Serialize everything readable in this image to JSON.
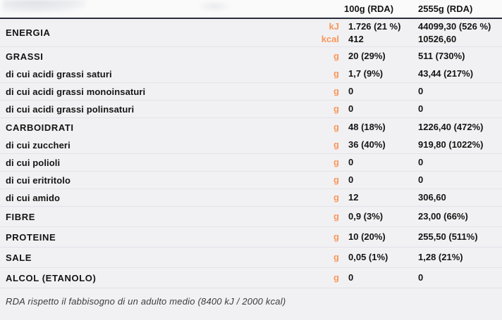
{
  "colors": {
    "accent_orange": "#f8975c",
    "header_rule": "#272d3a",
    "row_separator": "#e3e2ea",
    "background": "#f1f1f3"
  },
  "header": {
    "col_100g": "100g (RDA)",
    "col_2555g": "2555g (RDA)"
  },
  "rows": [
    {
      "label": "ENERGIA",
      "kind": "energy",
      "border": true,
      "lines": [
        {
          "unit": "kJ",
          "v100": "1.726 (21 %)",
          "v2555": "44099,30 (526 %)"
        },
        {
          "unit": "kcal",
          "v100": "412",
          "v2555": "10526,60"
        }
      ]
    },
    {
      "label": "GRASSI",
      "kind": "section",
      "border": false,
      "lines": [
        {
          "unit": "g",
          "v100": "20 (29%)",
          "v2555": "511 (730%)"
        }
      ]
    },
    {
      "label": "di cui acidi grassi saturi",
      "kind": "sub",
      "border": true,
      "lines": [
        {
          "unit": "g",
          "v100": "1,7 (9%)",
          "v2555": "43,44  (217%)"
        }
      ]
    },
    {
      "label": "di cui acidi grassi monoinsaturi",
      "kind": "sub",
      "border": true,
      "lines": [
        {
          "unit": "g",
          "v100": "0",
          "v2555": "0"
        }
      ]
    },
    {
      "label": "di cui acidi grassi polinsaturi",
      "kind": "sub",
      "border": true,
      "lines": [
        {
          "unit": "g",
          "v100": "0",
          "v2555": "0"
        }
      ]
    },
    {
      "label": "CARBOIDRATI",
      "kind": "section",
      "border": false,
      "lines": [
        {
          "unit": "g",
          "v100": "48 (18%)",
          "v2555": "1226,40 (472%)"
        }
      ]
    },
    {
      "label": "di cui zuccheri",
      "kind": "sub",
      "border": true,
      "lines": [
        {
          "unit": "g",
          "v100": "36 (40%)",
          "v2555": "919,80 (1022%)"
        }
      ]
    },
    {
      "label": "di cui polioli",
      "kind": "sub",
      "border": true,
      "lines": [
        {
          "unit": "g",
          "v100": "0",
          "v2555": "0"
        }
      ]
    },
    {
      "label": "di cui eritritolo",
      "kind": "sub",
      "border": true,
      "lines": [
        {
          "unit": "g",
          "v100": "0",
          "v2555": "0"
        }
      ]
    },
    {
      "label": "di cui amido",
      "kind": "sub",
      "border": true,
      "lines": [
        {
          "unit": "g",
          "v100": "12",
          "v2555": "306,60"
        }
      ]
    },
    {
      "label": "FIBRE",
      "kind": "main",
      "border": true,
      "lines": [
        {
          "unit": "g",
          "v100": "0,9 (3%)",
          "v2555": "23,00 (66%)"
        }
      ]
    },
    {
      "label": "PROTEINE",
      "kind": "main",
      "border": true,
      "lines": [
        {
          "unit": "g",
          "v100": "10 (20%)",
          "v2555": "255,50 (511%)"
        }
      ]
    },
    {
      "label": "SALE",
      "kind": "main",
      "border": true,
      "lines": [
        {
          "unit": "g",
          "v100": "0,05 (1%)",
          "v2555": "1,28 (21%)"
        }
      ]
    },
    {
      "label": "ALCOL (ETANOLO)",
      "kind": "main",
      "border": true,
      "lines": [
        {
          "unit": "g",
          "v100": "0",
          "v2555": "0"
        }
      ]
    }
  ],
  "footer": {
    "note": "RDA rispetto il fabbisogno di un adulto medio (8400 kJ / 2000 kcal)"
  }
}
